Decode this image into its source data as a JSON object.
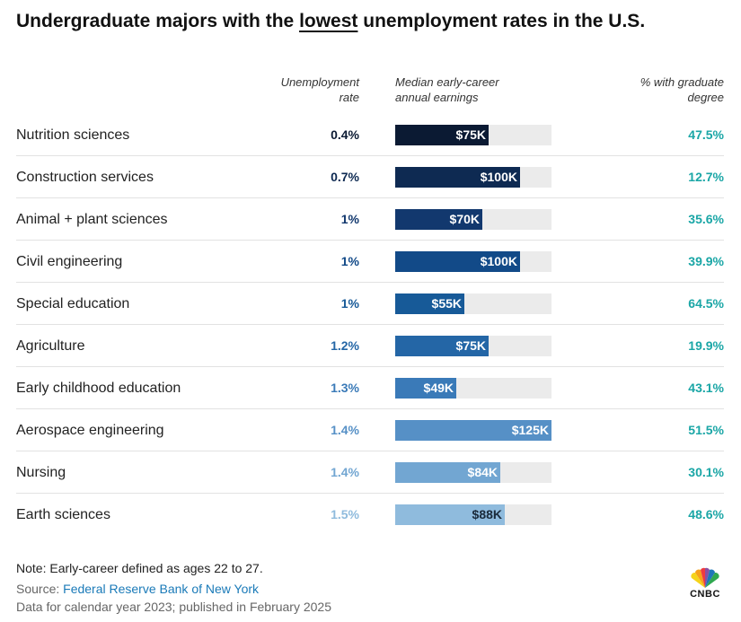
{
  "title": {
    "prefix": "Undergraduate majors with the ",
    "emphasis": "lowest",
    "suffix": " unemployment rates in the U.S."
  },
  "headers": {
    "rate": [
      "Unemployment",
      "rate"
    ],
    "earnings": [
      "Median early-career",
      "annual earnings"
    ],
    "grad": [
      "% with graduate",
      "degree"
    ]
  },
  "colors": {
    "shades": [
      "#0b1a33",
      "#0e2a52",
      "#12386e",
      "#124a88",
      "#175a98",
      "#2466a6",
      "#3a7ab8",
      "#5690c6",
      "#72a6d2",
      "#8fbbdd"
    ],
    "grad_teal": "#1aa6a6",
    "track": "#ebebeb"
  },
  "chart_data": {
    "type": "table",
    "earnings_max": 125000,
    "rows": [
      {
        "major": "Nutrition sciences",
        "unemployment": "0.4%",
        "earnings": 75000,
        "earnings_label": "$75K",
        "grad": "47.5%"
      },
      {
        "major": "Construction services",
        "unemployment": "0.7%",
        "earnings": 100000,
        "earnings_label": "$100K",
        "grad": "12.7%"
      },
      {
        "major": "Animal + plant sciences",
        "unemployment": "1%",
        "earnings": 70000,
        "earnings_label": "$70K",
        "grad": "35.6%"
      },
      {
        "major": "Civil engineering",
        "unemployment": "1%",
        "earnings": 100000,
        "earnings_label": "$100K",
        "grad": "39.9%"
      },
      {
        "major": "Special education",
        "unemployment": "1%",
        "earnings": 55000,
        "earnings_label": "$55K",
        "grad": "64.5%"
      },
      {
        "major": "Agriculture",
        "unemployment": "1.2%",
        "earnings": 75000,
        "earnings_label": "$75K",
        "grad": "19.9%"
      },
      {
        "major": "Early childhood education",
        "unemployment": "1.3%",
        "earnings": 49000,
        "earnings_label": "$49K",
        "grad": "43.1%"
      },
      {
        "major": "Aerospace engineering",
        "unemployment": "1.4%",
        "earnings": 125000,
        "earnings_label": "$125K",
        "grad": "51.5%"
      },
      {
        "major": "Nursing",
        "unemployment": "1.4%",
        "earnings": 84000,
        "earnings_label": "$84K",
        "grad": "30.1%"
      },
      {
        "major": "Earth sciences",
        "unemployment": "1.5%",
        "earnings": 88000,
        "earnings_label": "$88K",
        "grad": "48.6%"
      }
    ]
  },
  "footer": {
    "note": "Note: Early-career defined as ages 22 to 27.",
    "source_prefix": "Source: ",
    "source_link": "Federal Reserve Bank of New York",
    "published": "Data for calendar year 2023; published in February 2025"
  },
  "logo": {
    "text": "CNBC",
    "icon": "peacock-icon"
  }
}
